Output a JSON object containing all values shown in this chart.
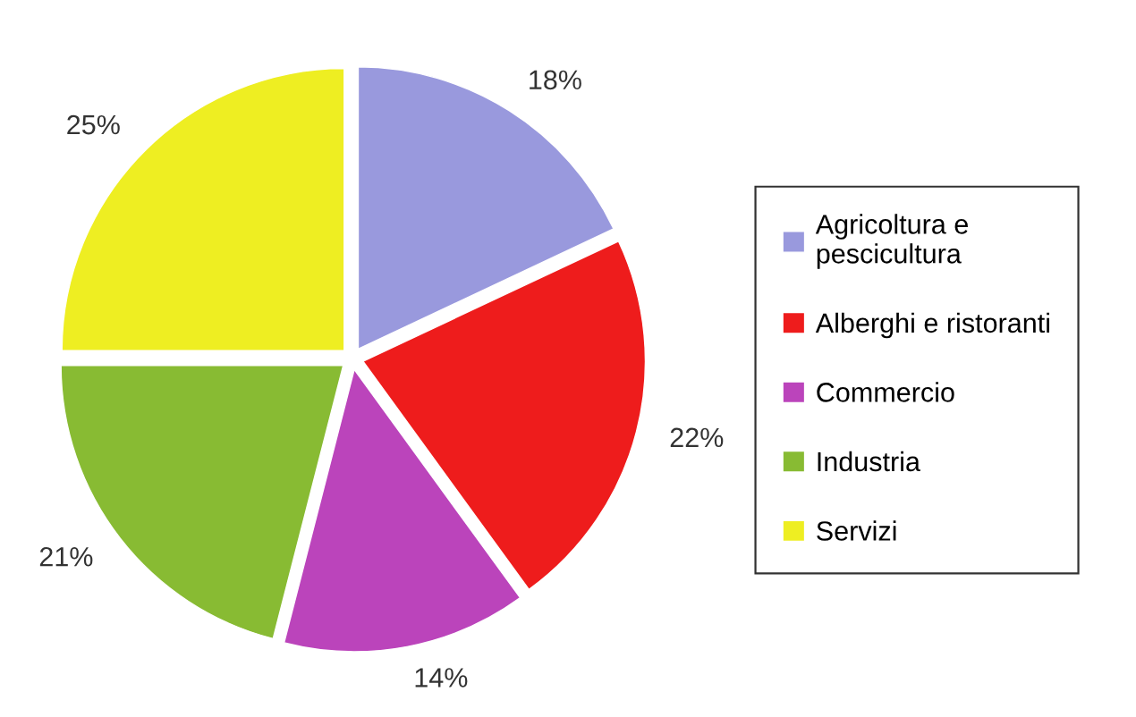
{
  "chart_data": {
    "type": "pie",
    "categories": [
      "Agricoltura e\npescicultura",
      "Alberghi e ristoranti",
      "Commercio",
      "Industria",
      "Servizi"
    ],
    "values": [
      18,
      22,
      14,
      21,
      25
    ],
    "value_labels": [
      "18%",
      "22%",
      "14%",
      "21%",
      "25%"
    ],
    "colors": [
      "#9999dd",
      "#ee1c1c",
      "#bb44bb",
      "#88bb33",
      "#eeee22"
    ],
    "legend": "right"
  }
}
